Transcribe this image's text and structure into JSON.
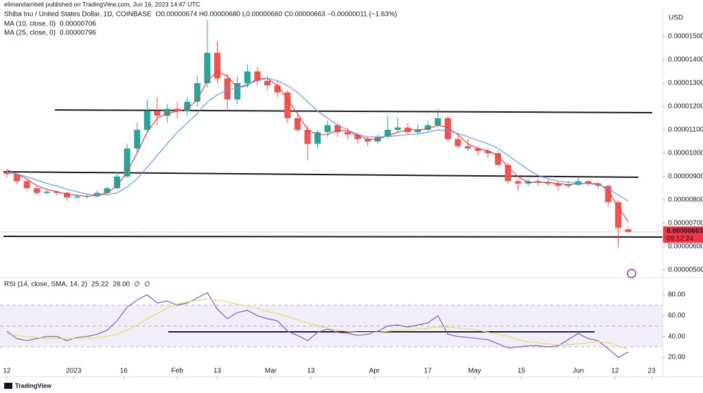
{
  "chart_data": {
    "type": "candlestick",
    "publisher": "elimandambell published on TradingView.com, Jun 16, 2023 14:47 UTC",
    "title": "Shiba Inu / United States Dollar, 1D, COINBASE",
    "ohlc_text": "O0.00000674 H0.00000680 L0.00000660 C0.00000663 −0.00000011 (−1.63%)",
    "currency": "USD",
    "last_price_label": "0.00000663",
    "countdown": "09:12:24",
    "brand": "TradingView",
    "up_color": "#26a69a",
    "down_color": "#ef5350",
    "grid": false,
    "xlim": [
      -0.68,
      65.41
    ],
    "xticks": [
      {
        "value": 0,
        "label": "12"
      },
      {
        "value": 6.67,
        "label": "2023"
      },
      {
        "value": 11.67,
        "label": "16"
      },
      {
        "value": 17,
        "label": "Feb"
      },
      {
        "value": 21,
        "label": "13"
      },
      {
        "value": 26.33,
        "label": "Mar"
      },
      {
        "value": 30.33,
        "label": "13"
      },
      {
        "value": 36.67,
        "label": "Apr"
      },
      {
        "value": 42,
        "label": "17"
      },
      {
        "value": 46.67,
        "label": "May"
      },
      {
        "value": 51.33,
        "label": "15"
      },
      {
        "value": 57,
        "label": "Jun"
      },
      {
        "value": 60.67,
        "label": "12"
      },
      {
        "value": 64.33,
        "label": "23"
      }
    ],
    "ylim": [
      4.79e-06,
      1.656e-05
    ],
    "yticks": [
      {
        "value": 1.5e-05,
        "label": "0.00001500"
      },
      {
        "value": 1.4e-05,
        "label": "0.00001400"
      },
      {
        "value": 1.3e-05,
        "label": "0.00001300"
      },
      {
        "value": 1.2e-05,
        "label": "0.00001200"
      },
      {
        "value": 1.1e-05,
        "label": "0.00001100"
      },
      {
        "value": 1e-05,
        "label": "0.00001000"
      },
      {
        "value": 9e-06,
        "label": "0.00000900"
      },
      {
        "value": 8e-06,
        "label": "0.00000800"
      },
      {
        "value": 7e-06,
        "label": "0.00000700"
      },
      {
        "value": 6e-06,
        "label": "0.00000600"
      },
      {
        "value": 5e-06,
        "label": "0.00000500"
      }
    ],
    "candles": [
      [
        9.2e-06,
        9.3e-06,
        8.95e-06,
        9.1e-06
      ],
      [
        9.1e-06,
        9.15e-06,
        8.7e-06,
        8.8e-06
      ],
      [
        8.8e-06,
        8.9e-06,
        8.4e-06,
        8.5e-06
      ],
      [
        8.5e-06,
        8.55e-06,
        8.2e-06,
        8.3e-06
      ],
      [
        8.3e-06,
        8.45e-06,
        8.25e-06,
        8.35e-06
      ],
      [
        8.35e-06,
        8.4e-06,
        8.2e-06,
        8.3e-06
      ],
      [
        8.3e-06,
        8.35e-06,
        7.95e-06,
        8.1e-06
      ],
      [
        8.1e-06,
        8.25e-06,
        8.05e-06,
        8.15e-06
      ],
      [
        8.15e-06,
        8.25e-06,
        8.05e-06,
        8.17e-06
      ],
      [
        8.15e-06,
        8.4e-06,
        8.1e-06,
        8.3e-06
      ],
      [
        8.3e-06,
        8.6e-06,
        8.25e-06,
        8.5e-06
      ],
      [
        8.5e-06,
        9.2e-06,
        8.45e-06,
        9e-06
      ],
      [
        9e-06,
        1.04e-05,
        8.95e-06,
        1.02e-05
      ],
      [
        1.02e-05,
        1.13e-05,
        1e-05,
        1.1e-05
      ],
      [
        1.1e-05,
        1.23e-05,
        1.09e-05,
        1.18e-05
      ],
      [
        1.18e-05,
        1.24e-05,
        1.12e-05,
        1.16e-05
      ],
      [
        1.16e-05,
        1.21e-05,
        1.13e-05,
        1.19e-05
      ],
      [
        1.19e-05,
        1.22e-05,
        1.15e-05,
        1.18e-05
      ],
      [
        1.18e-05,
        1.24e-05,
        1.16e-05,
        1.22e-05
      ],
      [
        1.22e-05,
        1.33e-05,
        1.2e-05,
        1.3e-05
      ],
      [
        1.3e-05,
        1.57e-05,
        1.28e-05,
        1.43e-05
      ],
      [
        1.43e-05,
        1.48e-05,
        1.3e-05,
        1.32e-05
      ],
      [
        1.32e-05,
        1.34e-05,
        1.18e-05,
        1.23e-05
      ],
      [
        1.23e-05,
        1.33e-05,
        1.21e-05,
        1.3e-05
      ],
      [
        1.3e-05,
        1.38e-05,
        1.28e-05,
        1.35e-05
      ],
      [
        1.35e-05,
        1.37e-05,
        1.29e-05,
        1.31e-05
      ],
      [
        1.31e-05,
        1.33e-05,
        1.27e-05,
        1.29e-05
      ],
      [
        1.29e-05,
        1.31e-05,
        1.24e-05,
        1.26e-05
      ],
      [
        1.26e-05,
        1.27e-05,
        1.13e-05,
        1.15e-05
      ],
      [
        1.15e-05,
        1.17e-05,
        1.09e-05,
        1.1e-05
      ],
      [
        1.1e-05,
        1.12e-05,
        9.7e-06,
        1.04e-05
      ],
      [
        1.04e-05,
        1.1e-05,
        1.02e-05,
        1.09e-05
      ],
      [
        1.09e-05,
        1.14e-05,
        1.07e-05,
        1.12e-05
      ],
      [
        1.12e-05,
        1.13e-05,
        1.07e-05,
        1.09e-05
      ],
      [
        1.09e-05,
        1.11e-05,
        1.06e-05,
        1.08e-05
      ],
      [
        1.08e-05,
        1.09e-05,
        1.04e-05,
        1.06e-05
      ],
      [
        1.06e-05,
        1.07e-05,
        1.03e-05,
        1.05e-05
      ],
      [
        1.05e-05,
        1.08e-05,
        1.04e-05,
        1.07e-05
      ],
      [
        1.07e-05,
        1.16e-05,
        1.06e-05,
        1.1e-05
      ],
      [
        1.1e-05,
        1.15e-05,
        1.09e-05,
        1.11e-05
      ],
      [
        1.11e-05,
        1.13e-05,
        1.08e-05,
        1.09e-05
      ],
      [
        1.09e-05,
        1.12e-05,
        1.08e-05,
        1.1e-05
      ],
      [
        1.1e-05,
        1.14e-05,
        1.09e-05,
        1.12e-05
      ],
      [
        1.12e-05,
        1.19e-05,
        1.11e-05,
        1.15e-05
      ],
      [
        1.15e-05,
        1.16e-05,
        1.05e-05,
        1.06e-05
      ],
      [
        1.06e-05,
        1.08e-05,
        1.02e-05,
        1.03e-05
      ],
      [
        1.03e-05,
        1.06e-05,
        1.01e-05,
        1.02e-05
      ],
      [
        1.02e-05,
        1.03e-05,
        9.9e-06,
        1.01e-05
      ],
      [
        1.01e-05,
        1.02e-05,
        9.8e-06,
        1e-05
      ],
      [
        1e-05,
        1.01e-05,
        9.4e-06,
        9.5e-06
      ],
      [
        9.5e-06,
        9.6e-06,
        8.7e-06,
        8.8e-06
      ],
      [
        8.8e-06,
        8.9e-06,
        8.4e-06,
        8.7e-06
      ],
      [
        8.7e-06,
        8.9e-06,
        8.6e-06,
        8.8e-06
      ],
      [
        8.8e-06,
        8.9e-06,
        8.6e-06,
        8.75e-06
      ],
      [
        8.75e-06,
        8.85e-06,
        8.6e-06,
        8.7e-06
      ],
      [
        8.7e-06,
        8.8e-06,
        8.4e-06,
        8.6e-06
      ],
      [
        8.6e-06,
        8.8e-06,
        8.5e-06,
        8.65e-06
      ],
      [
        8.65e-06,
        8.95e-06,
        8.6e-06,
        8.8e-06
      ],
      [
        8.8e-06,
        8.85e-06,
        8.6e-06,
        8.7e-06
      ],
      [
        8.7e-06,
        8.75e-06,
        8.5e-06,
        8.6e-06
      ],
      [
        8.6e-06,
        8.65e-06,
        7.7e-06,
        7.9e-06
      ],
      [
        7.9e-06,
        7.95e-06,
        5.95e-06,
        6.8e-06
      ],
      [
        6.74e-06,
        6.8e-06,
        6.6e-06,
        6.63e-06
      ]
    ],
    "series": [
      {
        "name": "MA (10, close, 0)",
        "value_label": "0.00000706",
        "color": "#f23645",
        "values": [
          9.3e-06,
          9.1e-06,
          8.9e-06,
          8.6e-06,
          8.45e-06,
          8.35e-06,
          8.25e-06,
          8.2e-06,
          8.15e-06,
          8.2e-06,
          8.3e-06,
          8.6e-06,
          9.2e-06,
          1e-05,
          1.09e-05,
          1.15e-05,
          1.17e-05,
          1.18e-05,
          1.19e-05,
          1.23e-05,
          1.31e-05,
          1.35e-05,
          1.33e-05,
          1.28e-05,
          1.29e-05,
          1.32e-05,
          1.32e-05,
          1.29e-05,
          1.23e-05,
          1.17e-05,
          1.1e-05,
          1.08e-05,
          1.08e-05,
          1.1e-05,
          1.095e-05,
          1.075e-05,
          1.06e-05,
          1.06e-05,
          1.075e-05,
          1.09e-05,
          1.1e-05,
          1.1e-05,
          1.105e-05,
          1.12e-05,
          1.11e-05,
          1.08e-05,
          1.04e-05,
          1.02e-05,
          1.01e-05,
          9.9e-06,
          9.4e-06,
          9e-06,
          8.75e-06,
          8.75e-06,
          8.75e-06,
          8.7e-06,
          8.65e-06,
          8.7e-06,
          8.7e-06,
          8.7e-06,
          8.4e-06,
          7.7e-06,
          7.06e-06
        ]
      },
      {
        "name": "MA (25, close, 0)",
        "value_label": "0.00000796",
        "color": "#5b9cf6",
        "values": [
          9.2e-06,
          9.1e-06,
          9e-06,
          8.85e-06,
          8.7e-06,
          8.6e-06,
          8.45e-06,
          8.35e-06,
          8.25e-06,
          8.2e-06,
          8.22e-06,
          8.3e-06,
          8.55e-06,
          8.9e-06,
          9.4e-06,
          9.9e-06,
          1.04e-05,
          1.09e-05,
          1.13e-05,
          1.17e-05,
          1.22e-05,
          1.25e-05,
          1.27e-05,
          1.28e-05,
          1.295e-05,
          1.31e-05,
          1.32e-05,
          1.31e-05,
          1.29e-05,
          1.26e-05,
          1.22e-05,
          1.18e-05,
          1.15e-05,
          1.12e-05,
          1.1e-05,
          1.08e-05,
          1.07e-05,
          1.07e-05,
          1.072e-05,
          1.075e-05,
          1.08e-05,
          1.082e-05,
          1.09e-05,
          1.1e-05,
          1.095e-05,
          1.085e-05,
          1.07e-05,
          1.055e-05,
          1.04e-05,
          1.02e-05,
          9.9e-06,
          9.6e-06,
          9.3e-06,
          9.05e-06,
          8.9e-06,
          8.8e-06,
          8.75e-06,
          8.72e-06,
          8.7e-06,
          8.65e-06,
          8.5e-06,
          8.2e-06,
          7.96e-06
        ]
      }
    ],
    "rsi": {
      "title": "RSI (14, close, SMA, 14, 2)",
      "value_labels": [
        "25.22",
        "28.00",
        "∅",
        "∅"
      ],
      "ylim": [
        3.6,
        92.5
      ],
      "yticks": [
        {
          "value": 80,
          "label": "80.00"
        },
        {
          "value": 60,
          "label": "60.00"
        },
        {
          "value": 40,
          "label": "40.00"
        },
        {
          "value": 20,
          "label": "20.00"
        }
      ],
      "bands": [
        70,
        50,
        30
      ],
      "band_color": "#7e57c2",
      "series": [
        {
          "name": "RSI",
          "color": "#7e57c2",
          "values": [
            45,
            38,
            36,
            38,
            40,
            40,
            36,
            39,
            40,
            42,
            46,
            55,
            68,
            75,
            80,
            72,
            74,
            70,
            72,
            77,
            82,
            66,
            57,
            63,
            65,
            60,
            57,
            55,
            45,
            41,
            36,
            44,
            47,
            44,
            43,
            41,
            42,
            45,
            50,
            51,
            49,
            51,
            53,
            60,
            42,
            40,
            39,
            38,
            37,
            33,
            29,
            30,
            31,
            31,
            30,
            31,
            37,
            43,
            38,
            36,
            28,
            20,
            25.22
          ]
        },
        {
          "name": "SMA",
          "color": "#e8dc57",
          "values": [
            42,
            41,
            40,
            39,
            38,
            38,
            38,
            38,
            38,
            39,
            40,
            42,
            46,
            51,
            57,
            62,
            67,
            71,
            73,
            75,
            76,
            75,
            73,
            71,
            69,
            67,
            64,
            62,
            59,
            56,
            53,
            50,
            48,
            46,
            45,
            44,
            44,
            44,
            45,
            46,
            46,
            47,
            48,
            49,
            49,
            48,
            47,
            46,
            44,
            42,
            40,
            37,
            35,
            34,
            33,
            32,
            32,
            33,
            34,
            35,
            34,
            31,
            28
          ]
        }
      ]
    }
  }
}
